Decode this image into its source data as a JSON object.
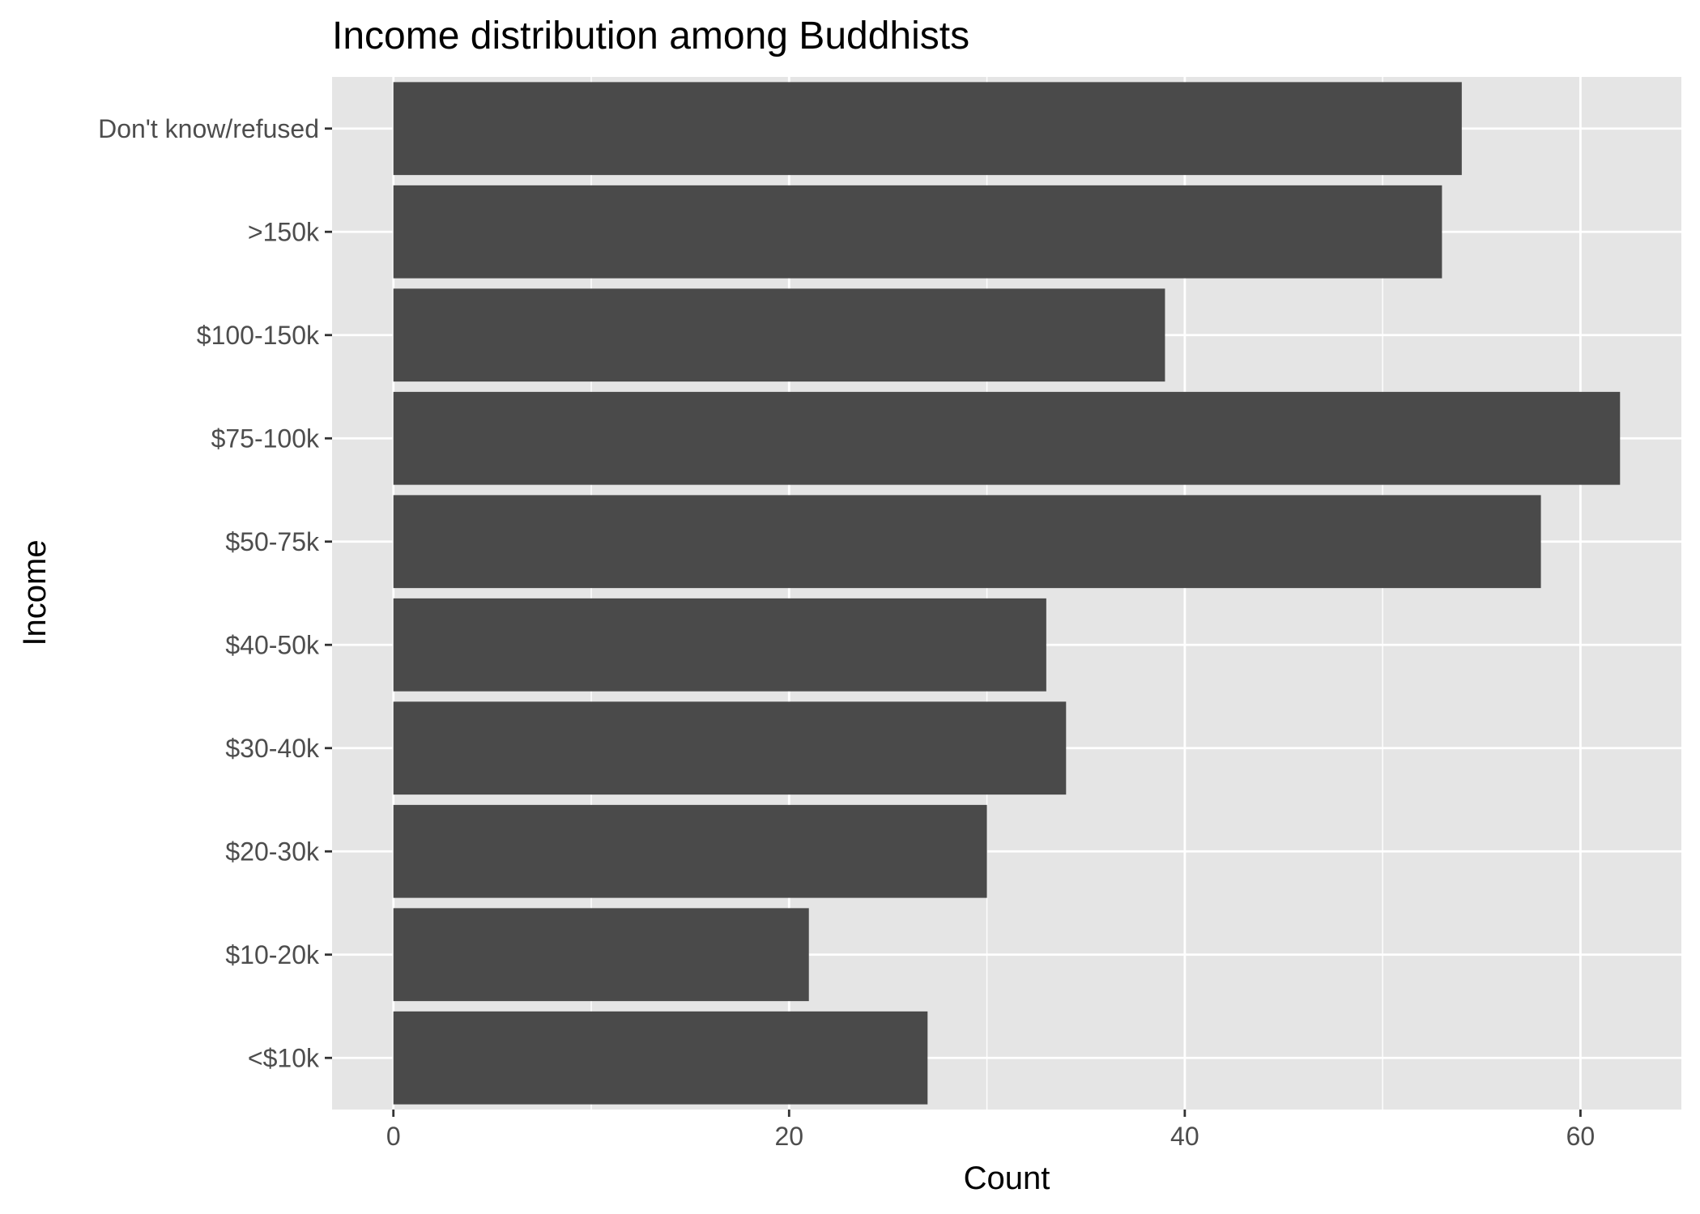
{
  "chart_data": {
    "type": "bar",
    "orientation": "horizontal",
    "title": "Income distribution among Buddhists",
    "xlabel": "Count",
    "ylabel": "Income",
    "categories": [
      "<$10k",
      "$10-20k",
      "$20-30k",
      "$30-40k",
      "$40-50k",
      "$50-75k",
      "$75-100k",
      "$100-150k",
      ">150k",
      "Don't know/refused"
    ],
    "values": [
      27,
      21,
      30,
      34,
      33,
      58,
      62,
      39,
      53,
      54
    ],
    "xlim": [
      -3.1,
      65.1
    ],
    "xticks": [
      0,
      20,
      40,
      60
    ],
    "xtick_labels": [
      "0",
      "20",
      "40",
      "60"
    ],
    "grid": true,
    "legend": "none",
    "colors": {
      "bar": "#4a4a4a",
      "panel": "#e5e5e5",
      "gridline": "#ffffff",
      "tick_text": "#4d4d4d",
      "tick_mark": "#333333",
      "text": "#000000"
    }
  }
}
